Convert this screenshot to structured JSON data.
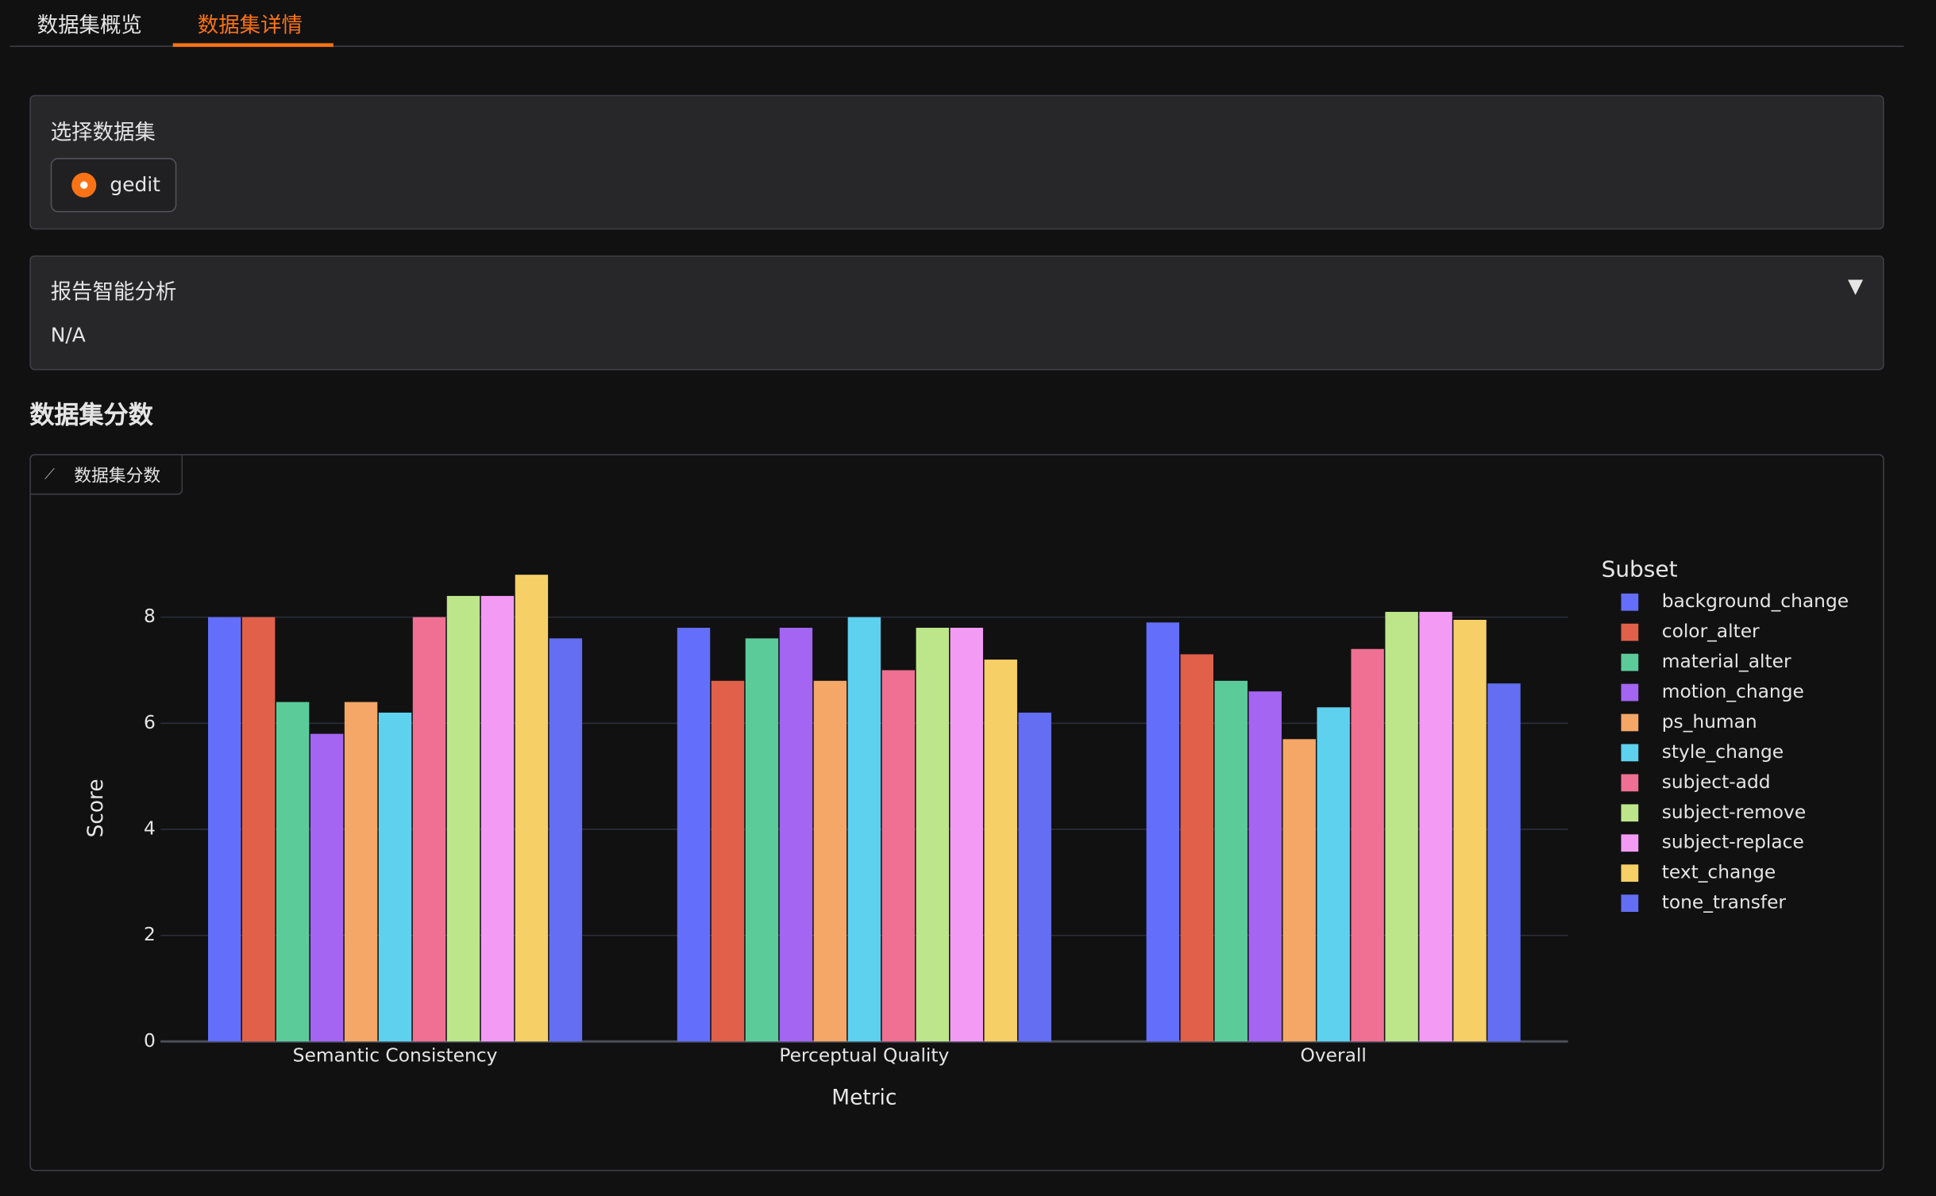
{
  "tabs": [
    "数据集概览",
    "数据集详情"
  ],
  "dataset_selector": {
    "label": "选择数据集",
    "options": [
      "gedit"
    ]
  },
  "report": {
    "title": "报告智能分析",
    "content": "N/A"
  },
  "section_title": "数据集分数",
  "chart_panel_label": "数据集分数",
  "chart_data": {
    "type": "bar",
    "categories": [
      "Semantic Consistency",
      "Perceptual Quality",
      "Overall"
    ],
    "x_label": "Metric",
    "y_label": "Score",
    "legend_title": "Subset",
    "ylim": [
      0,
      9.26
    ],
    "yticks": [
      0,
      2,
      4,
      6,
      8
    ],
    "grid": true,
    "series": [
      {
        "name": "background_change",
        "color": "#636efa",
        "values": [
          8.0,
          7.8,
          7.9
        ]
      },
      {
        "name": "color_alter",
        "color": "#e0604a",
        "values": [
          8.0,
          6.8,
          7.3
        ]
      },
      {
        "name": "material_alter",
        "color": "#5ccb9a",
        "values": [
          6.4,
          7.6,
          6.8
        ]
      },
      {
        "name": "motion_change",
        "color": "#a365f2",
        "values": [
          5.8,
          7.8,
          6.6
        ]
      },
      {
        "name": "ps_human",
        "color": "#f4a766",
        "values": [
          6.4,
          6.8,
          5.7
        ]
      },
      {
        "name": "style_change",
        "color": "#5ed1ef",
        "values": [
          6.2,
          8.0,
          6.3
        ]
      },
      {
        "name": "subject-add",
        "color": "#ef7093",
        "values": [
          8.0,
          7.0,
          7.4
        ]
      },
      {
        "name": "subject-remove",
        "color": "#bde68a",
        "values": [
          8.4,
          7.8,
          8.1
        ]
      },
      {
        "name": "subject-replace",
        "color": "#f39bf4",
        "values": [
          8.4,
          7.8,
          8.1
        ]
      },
      {
        "name": "text_change",
        "color": "#f6cf66",
        "values": [
          8.8,
          7.2,
          7.95
        ]
      },
      {
        "name": "tone_transfer",
        "color": "#636ef2",
        "values": [
          7.6,
          6.2,
          6.75
        ]
      }
    ]
  }
}
